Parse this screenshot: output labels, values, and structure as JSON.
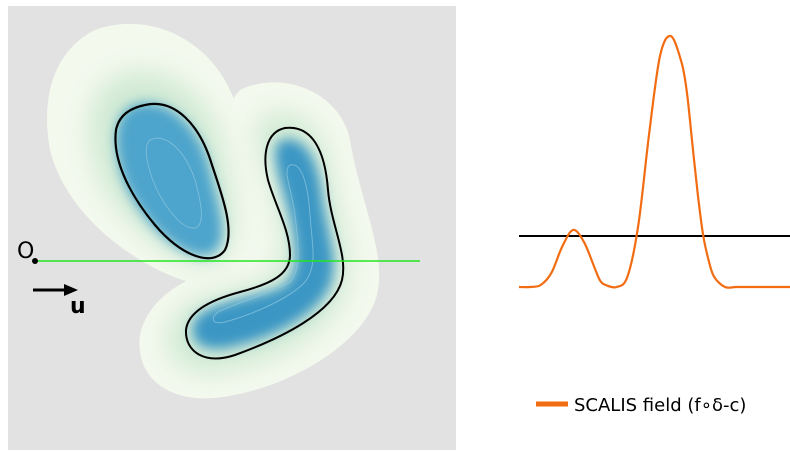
{
  "left_panel": {
    "origin_label": "O",
    "direction_label": "u"
  },
  "right_panel": {
    "legend_label": "SCALIS field (f∘δ-c)",
    "colors": {
      "field_curve": "#f26c12",
      "threshold_line": "#000000"
    }
  },
  "colors": {
    "background_panel": "#e2e2e2",
    "ray": "#22e622",
    "iso_contour": "#000000",
    "field_outer": "#f4f9ee",
    "field_inner": "#2f8fc0"
  },
  "chart_data": {
    "type": "line",
    "series": [
      {
        "name": "SCALIS field (f∘δ-c)",
        "x": [
          0,
          4,
          8,
          12,
          16,
          20,
          24,
          28,
          30,
          32,
          36,
          40,
          44,
          48,
          52,
          56,
          60,
          62,
          64,
          66,
          68,
          70,
          72,
          76,
          80,
          84,
          88,
          92,
          96,
          100
        ],
        "y": [
          -0.25,
          -0.25,
          -0.24,
          -0.18,
          -0.05,
          0.03,
          -0.03,
          -0.16,
          -0.22,
          -0.24,
          -0.25,
          -0.2,
          0.05,
          0.5,
          0.88,
          0.98,
          0.85,
          0.7,
          0.45,
          0.2,
          0.0,
          -0.12,
          -0.2,
          -0.25,
          -0.25,
          -0.25,
          -0.25,
          -0.25,
          -0.25,
          -0.25
        ]
      }
    ],
    "threshold": 0
  }
}
